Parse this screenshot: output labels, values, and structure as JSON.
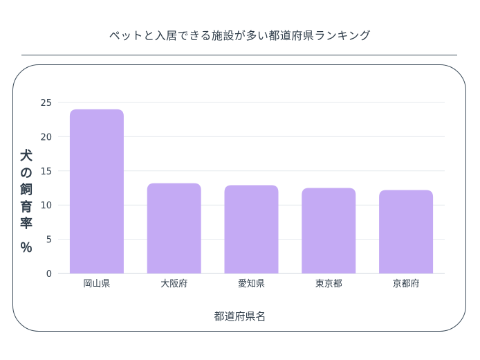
{
  "title": "ペットと入居できる施設が多い都道府県ランキング",
  "chart_data": {
    "type": "bar",
    "title": "ペットと入居できる施設が多い都道府県ランキング",
    "xlabel": "都道府県名",
    "ylabel": "犬の飼育率％",
    "categories": [
      "岡山県",
      "大阪府",
      "愛知県",
      "東京都",
      "京都府"
    ],
    "values": [
      24.0,
      13.2,
      12.9,
      12.5,
      12.2
    ],
    "ylim": [
      0,
      25
    ],
    "yticks": [
      "0",
      "5",
      "10",
      "15",
      "20",
      "25"
    ],
    "grid": true,
    "bar_color": "#c4aaf4"
  }
}
